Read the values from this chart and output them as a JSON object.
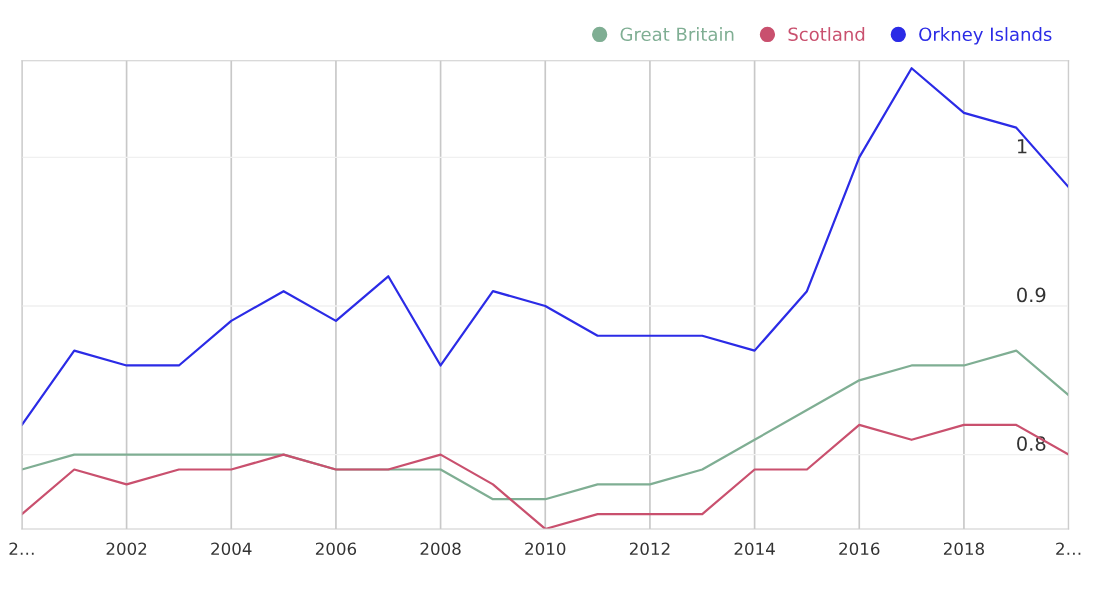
{
  "chart_data": {
    "type": "line",
    "x": [
      2000,
      2001,
      2002,
      2003,
      2004,
      2005,
      2006,
      2007,
      2008,
      2009,
      2010,
      2011,
      2012,
      2013,
      2014,
      2015,
      2016,
      2017,
      2018,
      2019,
      2020
    ],
    "series": [
      {
        "name": "Great Britain",
        "color": "#7fae93",
        "values": [
          0.79,
          0.8,
          0.8,
          0.8,
          0.8,
          0.8,
          0.79,
          0.79,
          0.79,
          0.77,
          0.77,
          0.78,
          0.78,
          0.79,
          0.81,
          0.83,
          0.85,
          0.86,
          0.86,
          0.87,
          0.84
        ]
      },
      {
        "name": "Scotland",
        "color": "#c9506e",
        "values": [
          0.76,
          0.79,
          0.78,
          0.79,
          0.79,
          0.8,
          0.79,
          0.79,
          0.8,
          0.78,
          0.75,
          0.76,
          0.76,
          0.76,
          0.79,
          0.79,
          0.82,
          0.81,
          0.82,
          0.82,
          0.8
        ]
      },
      {
        "name": "Orkney Islands",
        "color": "#2b2be6",
        "values": [
          0.82,
          0.87,
          0.86,
          0.86,
          0.89,
          0.91,
          0.89,
          0.92,
          0.86,
          0.91,
          0.9,
          0.88,
          0.88,
          0.88,
          0.87,
          0.91,
          1.0,
          1.06,
          1.03,
          1.02,
          0.98
        ]
      }
    ],
    "xlim": [
      2000,
      2020
    ],
    "xticks": [
      {
        "value": 2000,
        "label": "2…"
      },
      2002,
      2004,
      2006,
      2008,
      2010,
      2012,
      2014,
      2016,
      2018,
      {
        "value": 2020,
        "label": "2…"
      }
    ],
    "ylim": [
      0.75,
      1.065
    ],
    "yticks": [
      0.8,
      0.9,
      1
    ],
    "grid": true,
    "legend": "top right",
    "marker": "none",
    "line_style": "solid"
  }
}
